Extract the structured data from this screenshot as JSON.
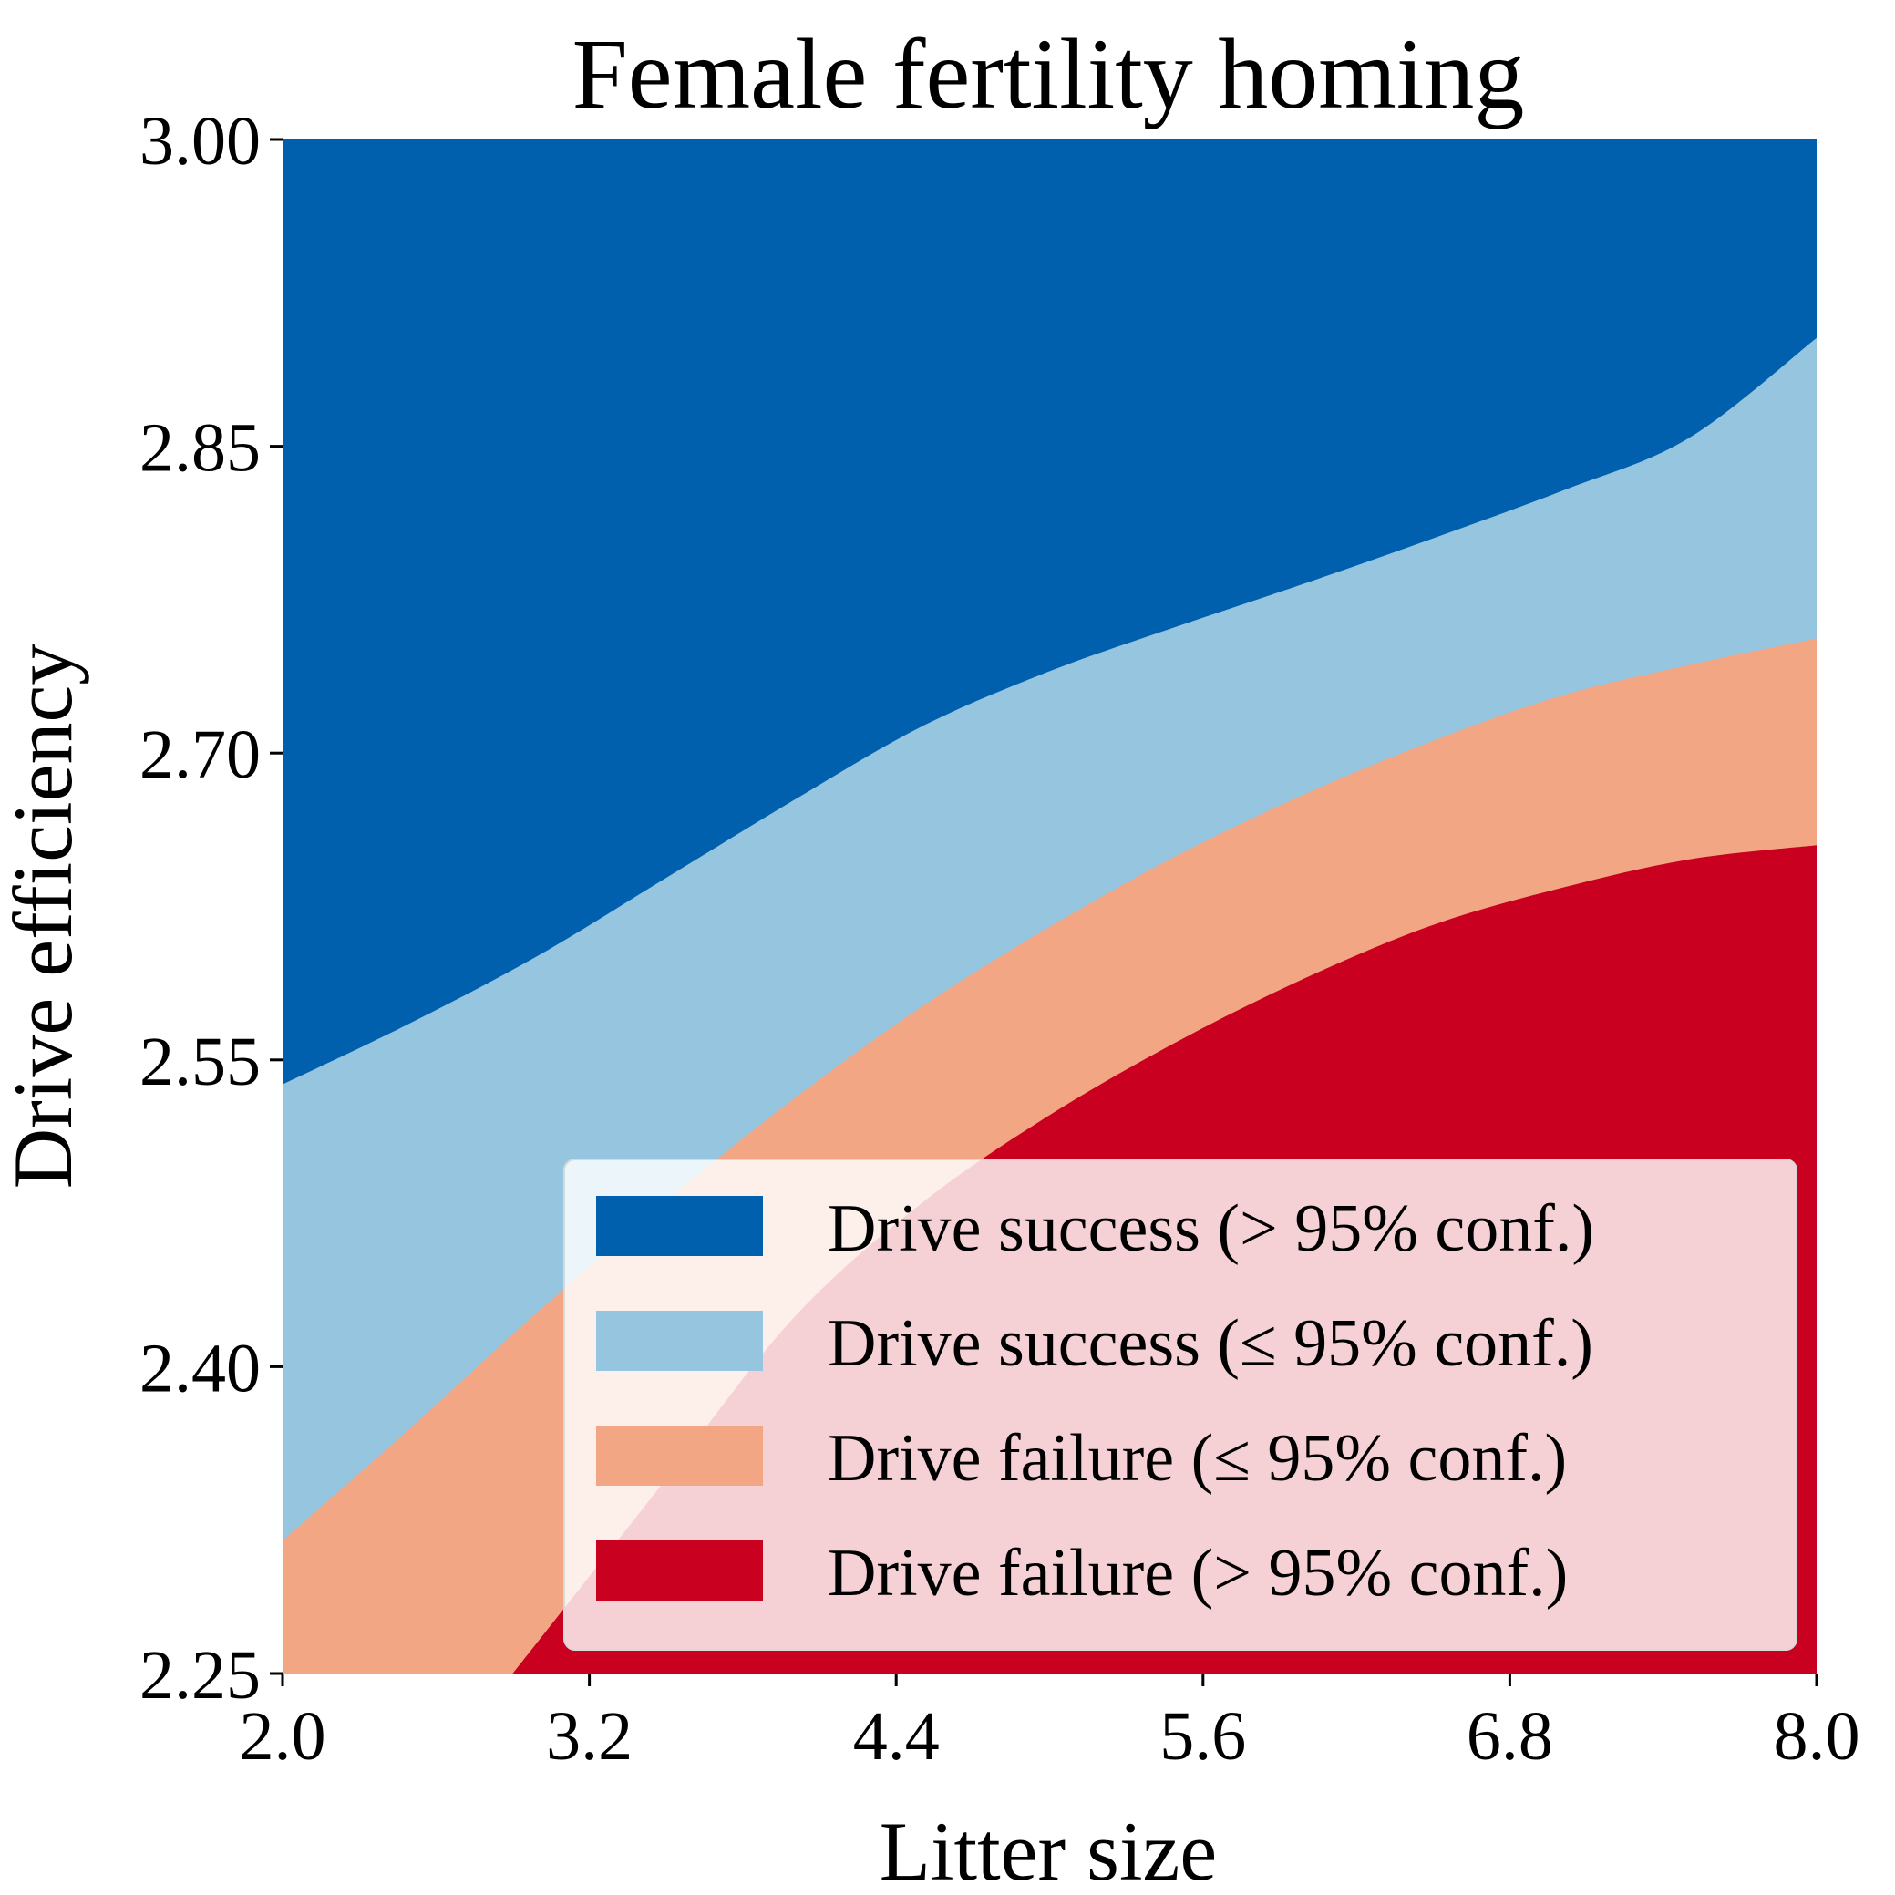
{
  "chart_data": {
    "type": "area",
    "title": "Female fertility homing",
    "xlabel": "Litter size",
    "ylabel": "Drive efficiency",
    "xlim": [
      2.0,
      8.0
    ],
    "ylim": [
      2.25,
      3.0
    ],
    "xticks": [
      "2.0",
      "3.2",
      "4.4",
      "5.6",
      "6.8",
      "8.0"
    ],
    "yticks": [
      "3.00",
      "2.85",
      "2.70",
      "2.55",
      "2.40",
      "2.25"
    ],
    "grid": false,
    "legend_position": "lower-right",
    "x": [
      2.0,
      2.5,
      3.0,
      3.5,
      4.0,
      4.5,
      5.0,
      5.5,
      6.0,
      6.5,
      7.0,
      7.5,
      8.0
    ],
    "boundaries": [
      {
        "upper_region": "Drive success (> 95% conf.)",
        "lower_region": "Drive success (≤ 95% conf.)",
        "y": [
          2.538,
          2.568,
          2.601,
          2.639,
          2.677,
          2.713,
          2.74,
          2.762,
          2.783,
          2.805,
          2.828,
          2.854,
          2.903
        ]
      },
      {
        "upper_region": "Drive success (≤ 95% conf.)",
        "lower_region": "Drive failure (≤ 95% conf.)",
        "y": [
          2.315,
          2.37,
          2.427,
          2.481,
          2.531,
          2.576,
          2.615,
          2.65,
          2.68,
          2.706,
          2.728,
          2.743,
          2.756
        ]
      },
      {
        "upper_region": "Drive failure (≤ 95% conf.)",
        "lower_region": "Drive failure (> 95% conf.)",
        "y": [
          null,
          null,
          null,
          2.345,
          2.424,
          2.48,
          2.523,
          2.559,
          2.59,
          2.616,
          2.634,
          2.648,
          2.655
        ],
        "x_start": 2.9
      }
    ],
    "series": [
      {
        "name": "Drive success (> 95% conf.)",
        "color": "#0060ae"
      },
      {
        "name": "Drive success (≤ 95% conf.)",
        "color": "#95c5df"
      },
      {
        "name": "Drive failure (≤ 95% conf.)",
        "color": "#f3a683"
      },
      {
        "name": "Drive failure (> 95% conf.)",
        "color": "#c9001f"
      }
    ]
  }
}
